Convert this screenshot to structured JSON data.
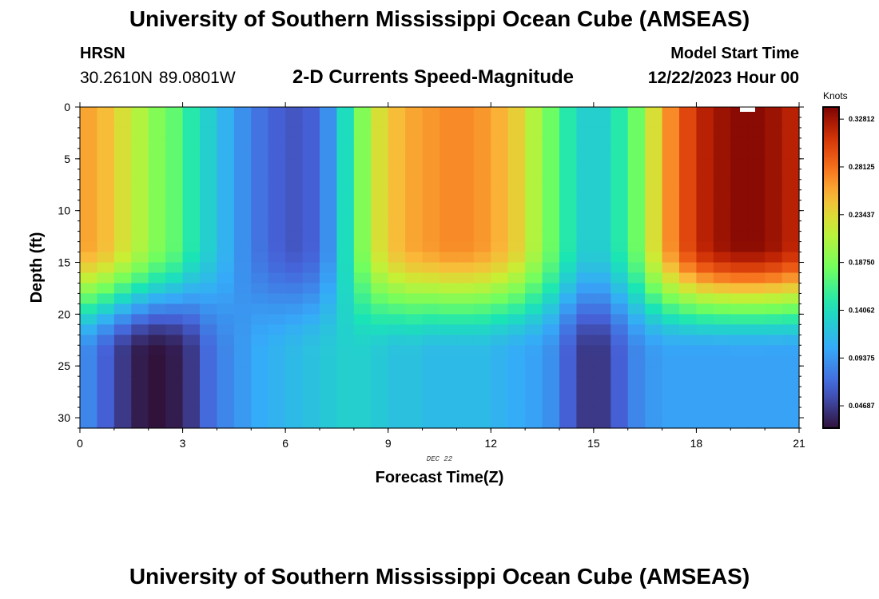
{
  "header": {
    "title": "University of Southern Mississippi Ocean Cube (AMSEAS)",
    "station": "HRSN",
    "coords": "30.2610N  89.0801W",
    "subtitle": "2-D Currents Speed-Magnitude",
    "model_start_label": "Model Start Time",
    "model_start_value": "12/22/2023 Hour 00"
  },
  "footer": {
    "title": "University of Southern Mississippi Ocean Cube (AMSEAS)"
  },
  "chart_data": {
    "type": "heatmap",
    "title": "2-D Currents Speed-Magnitude",
    "xlabel": "Forecast Time(Z)",
    "ylabel": "Depth (ft)",
    "date_label": "DEC 22",
    "xlim": [
      0,
      21
    ],
    "ylim": [
      0,
      31
    ],
    "x_ticks": [
      "0",
      "3",
      "6",
      "9",
      "12",
      "15",
      "18",
      "21"
    ],
    "y_ticks": [
      "0",
      "5",
      "10",
      "15",
      "20",
      "25",
      "30"
    ],
    "colorbar": {
      "unit": "Knots",
      "min": 0.025,
      "max": 0.34,
      "ticks": [
        "0.04687",
        "0.09375",
        "0.14062",
        "0.18750",
        "0.23437",
        "0.28125",
        "0.32812"
      ],
      "tick_values": [
        0.04687,
        0.09375,
        0.14062,
        0.1875,
        0.23437,
        0.28125,
        0.32812
      ]
    },
    "field": {
      "hours": [
        0.25,
        0.75,
        1.25,
        1.75,
        2.25,
        2.75,
        3.25,
        3.75,
        4.25,
        4.75,
        5.25,
        5.75,
        6.25,
        6.75,
        7.25,
        7.75,
        8.25,
        8.75,
        9.25,
        9.75,
        10.25,
        10.75,
        11.25,
        11.75,
        12.25,
        12.75,
        13.25,
        13.75,
        14.25,
        14.75,
        15.25,
        15.75,
        16.25,
        16.75,
        17.25,
        17.75,
        18.25,
        18.75,
        19.25,
        19.75,
        20.25,
        20.75
      ],
      "surface_knots": [
        0.26,
        0.25,
        0.23,
        0.21,
        0.19,
        0.175,
        0.15,
        0.13,
        0.11,
        0.09,
        0.075,
        0.065,
        0.06,
        0.065,
        0.09,
        0.14,
        0.19,
        0.23,
        0.25,
        0.26,
        0.265,
        0.27,
        0.27,
        0.265,
        0.255,
        0.24,
        0.21,
        0.18,
        0.15,
        0.13,
        0.13,
        0.15,
        0.18,
        0.23,
        0.27,
        0.3,
        0.32,
        0.33,
        0.335,
        0.335,
        0.33,
        0.32
      ],
      "deep_knots": [
        0.085,
        0.065,
        0.045,
        0.03,
        0.025,
        0.03,
        0.045,
        0.07,
        0.085,
        0.095,
        0.105,
        0.11,
        0.115,
        0.12,
        0.125,
        0.13,
        0.13,
        0.125,
        0.12,
        0.12,
        0.115,
        0.115,
        0.115,
        0.115,
        0.11,
        0.105,
        0.1,
        0.09,
        0.065,
        0.045,
        0.045,
        0.065,
        0.085,
        0.095,
        0.1,
        0.1,
        0.1,
        0.1,
        0.1,
        0.1,
        0.1,
        0.1
      ]
    }
  }
}
